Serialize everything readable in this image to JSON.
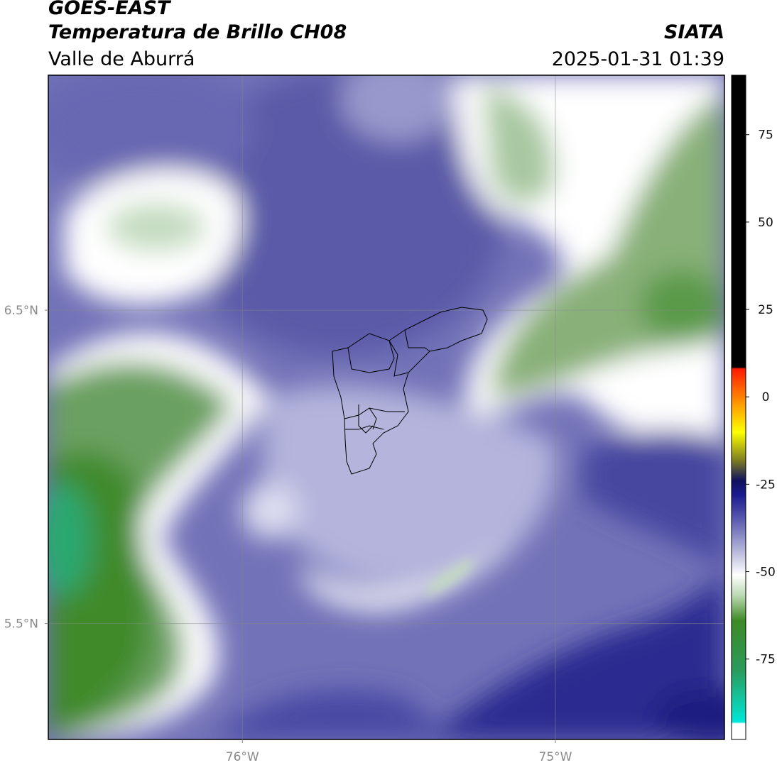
{
  "header": {
    "title": "GOES-EAST",
    "subtitle": "Temperatura de Brillo CH08",
    "region": "Valle de Aburrá",
    "source": "SIATA",
    "datetime": "2025-01-31 01:39"
  },
  "map": {
    "xlim": [
      -76.62,
      -74.46
    ],
    "ylim": [
      5.13,
      7.25
    ],
    "xticks": [
      {
        "value": -76,
        "label": "76°W"
      },
      {
        "value": -75,
        "label": "75°W"
      }
    ],
    "yticks": [
      {
        "value": 6.5,
        "label": "6.5°N"
      },
      {
        "value": 5.5,
        "label": "5.5°N"
      }
    ],
    "grid": true
  },
  "colorbar": {
    "lim": [
      -98,
      92
    ],
    "ticks": [
      75,
      50,
      25,
      0,
      -25,
      -50,
      -75
    ],
    "colormap": [
      {
        "value": 92,
        "color": "#000000"
      },
      {
        "value": 8.5,
        "color": "#000000"
      },
      {
        "value": 8,
        "color": "#ff1a00"
      },
      {
        "value": 0,
        "color": "#ff8000"
      },
      {
        "value": -10,
        "color": "#ffff00"
      },
      {
        "value": -18,
        "color": "#808020"
      },
      {
        "value": -24,
        "color": "#101060"
      },
      {
        "value": -28,
        "color": "#1a1a90"
      },
      {
        "value": -36,
        "color": "#6464b4"
      },
      {
        "value": -45,
        "color": "#c0c0e0"
      },
      {
        "value": -51,
        "color": "#ffffff"
      },
      {
        "value": -57,
        "color": "#b8d8b0"
      },
      {
        "value": -64,
        "color": "#3d8a25"
      },
      {
        "value": -78,
        "color": "#2a9a5a"
      },
      {
        "value": -93,
        "color": "#00e8d8"
      },
      {
        "value": -93.5,
        "color": "#ffffff"
      },
      {
        "value": -98,
        "color": "#ffffff"
      }
    ]
  }
}
